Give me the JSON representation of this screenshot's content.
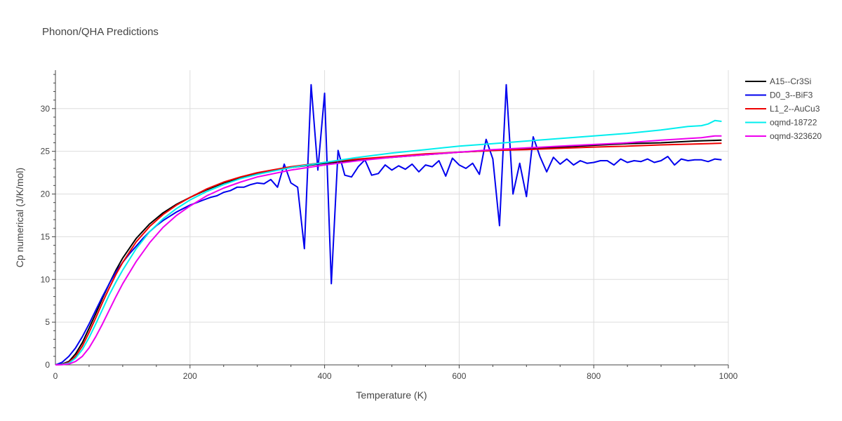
{
  "chart_data": {
    "type": "line",
    "title": "Phonon/QHA Predictions",
    "xlabel": "Temperature (K)",
    "ylabel": "Cp numerical (J/K/mol)",
    "xlim": [
      0,
      1000
    ],
    "ylim": [
      0,
      34.5
    ],
    "x_ticks": [
      0,
      200,
      400,
      600,
      800,
      1000
    ],
    "y_ticks": [
      0,
      5,
      10,
      15,
      20,
      25,
      30
    ],
    "grid": true,
    "legend_position": "right",
    "series": [
      {
        "name": "A15--Cr3Si",
        "color": "#000000",
        "x": [
          0,
          10,
          20,
          30,
          40,
          50,
          60,
          70,
          80,
          90,
          100,
          120,
          140,
          160,
          180,
          200,
          225,
          250,
          275,
          300,
          350,
          400,
          450,
          500,
          550,
          600,
          650,
          700,
          750,
          800,
          850,
          900,
          950,
          990
        ],
        "y": [
          0,
          0.1,
          0.4,
          1.3,
          2.6,
          4.3,
          6.0,
          7.8,
          9.5,
          11.1,
          12.5,
          14.8,
          16.5,
          17.8,
          18.8,
          19.6,
          20.5,
          21.3,
          21.9,
          22.4,
          23.1,
          23.6,
          24.0,
          24.3,
          24.6,
          24.9,
          25.1,
          25.3,
          25.5,
          25.7,
          25.9,
          26.0,
          26.2,
          26.3
        ]
      },
      {
        "name": "D0_3--BiF3",
        "color": "#0000ee",
        "x": [
          0,
          10,
          20,
          30,
          40,
          50,
          60,
          70,
          80,
          90,
          100,
          110,
          120,
          130,
          140,
          150,
          160,
          170,
          180,
          190,
          200,
          210,
          220,
          230,
          240,
          250,
          260,
          270,
          280,
          290,
          300,
          310,
          320,
          330,
          340,
          350,
          360,
          370,
          380,
          390,
          400,
          410,
          420,
          430,
          440,
          450,
          460,
          470,
          480,
          490,
          500,
          510,
          520,
          530,
          540,
          550,
          560,
          570,
          580,
          590,
          600,
          610,
          620,
          630,
          640,
          650,
          660,
          670,
          680,
          690,
          700,
          710,
          720,
          730,
          740,
          750,
          760,
          770,
          780,
          790,
          800,
          810,
          820,
          830,
          840,
          850,
          860,
          870,
          880,
          890,
          900,
          910,
          920,
          930,
          940,
          950,
          960,
          970,
          980,
          990
        ],
        "y": [
          0,
          0.3,
          1.0,
          2.0,
          3.3,
          4.8,
          6.4,
          8.0,
          9.5,
          10.9,
          12.0,
          13.0,
          13.9,
          14.8,
          15.6,
          16.3,
          16.9,
          17.4,
          17.9,
          18.3,
          18.7,
          19.0,
          19.3,
          19.6,
          19.8,
          20.2,
          20.4,
          20.8,
          20.8,
          21.1,
          21.3,
          21.2,
          21.7,
          20.8,
          23.5,
          21.3,
          20.8,
          13.6,
          32.8,
          22.8,
          31.8,
          9.5,
          25.1,
          22.2,
          22.0,
          23.2,
          24.0,
          22.2,
          22.4,
          23.4,
          22.8,
          23.3,
          22.9,
          23.5,
          22.6,
          23.4,
          23.2,
          23.9,
          22.1,
          24.2,
          23.4,
          23.0,
          23.6,
          22.3,
          26.4,
          24.1,
          16.3,
          32.8,
          20.0,
          23.6,
          19.7,
          26.7,
          24.4,
          22.6,
          24.3,
          23.5,
          24.1,
          23.4,
          23.9,
          23.6,
          23.7,
          23.9,
          23.9,
          23.4,
          24.1,
          23.7,
          23.9,
          23.8,
          24.1,
          23.7,
          23.9,
          24.4,
          23.4,
          24.1,
          23.9,
          24.0,
          24.0,
          23.8,
          24.1,
          24.0
        ]
      },
      {
        "name": "L1_2--AuCu3",
        "color": "#ee0000",
        "x": [
          0,
          10,
          20,
          30,
          40,
          50,
          60,
          70,
          80,
          90,
          100,
          120,
          140,
          160,
          180,
          200,
          225,
          250,
          275,
          300,
          350,
          400,
          450,
          500,
          550,
          600,
          650,
          700,
          750,
          800,
          850,
          900,
          950,
          990
        ],
        "y": [
          0,
          0.05,
          0.3,
          1.0,
          2.2,
          3.8,
          5.5,
          7.3,
          9.0,
          10.6,
          12.0,
          14.4,
          16.2,
          17.6,
          18.7,
          19.6,
          20.6,
          21.4,
          22.0,
          22.5,
          23.2,
          23.7,
          24.1,
          24.4,
          24.7,
          24.9,
          25.1,
          25.2,
          25.35,
          25.5,
          25.6,
          25.75,
          25.85,
          25.95
        ]
      },
      {
        "name": "oqmd-18722",
        "color": "#00eeee",
        "x": [
          0,
          10,
          20,
          30,
          40,
          50,
          60,
          70,
          80,
          90,
          100,
          120,
          140,
          160,
          180,
          200,
          225,
          250,
          275,
          300,
          350,
          400,
          450,
          500,
          550,
          600,
          650,
          700,
          750,
          800,
          850,
          900,
          920,
          940,
          960,
          970,
          980,
          990
        ],
        "y": [
          0,
          0.05,
          0.2,
          0.8,
          1.8,
          3.2,
          4.8,
          6.5,
          8.2,
          9.7,
          11.1,
          13.6,
          15.6,
          17.1,
          18.3,
          19.3,
          20.3,
          21.1,
          21.8,
          22.3,
          23.1,
          23.7,
          24.3,
          24.8,
          25.2,
          25.6,
          25.9,
          26.2,
          26.5,
          26.8,
          27.1,
          27.5,
          27.7,
          27.9,
          28.0,
          28.2,
          28.6,
          28.5
        ]
      },
      {
        "name": "oqmd-323620",
        "color": "#ee00ee",
        "x": [
          0,
          10,
          20,
          30,
          40,
          50,
          60,
          70,
          80,
          90,
          100,
          120,
          140,
          160,
          180,
          200,
          225,
          250,
          275,
          300,
          350,
          400,
          450,
          500,
          550,
          600,
          650,
          700,
          750,
          800,
          850,
          900,
          920,
          940,
          960,
          980,
          990
        ],
        "y": [
          0,
          0.02,
          0.1,
          0.4,
          1.0,
          2.0,
          3.3,
          4.8,
          6.4,
          8.0,
          9.5,
          12.1,
          14.3,
          16.1,
          17.5,
          18.6,
          19.8,
          20.7,
          21.4,
          22.0,
          22.8,
          23.4,
          23.9,
          24.3,
          24.6,
          24.9,
          25.2,
          25.4,
          25.6,
          25.8,
          26.0,
          26.3,
          26.4,
          26.5,
          26.6,
          26.8,
          26.8
        ]
      }
    ]
  }
}
